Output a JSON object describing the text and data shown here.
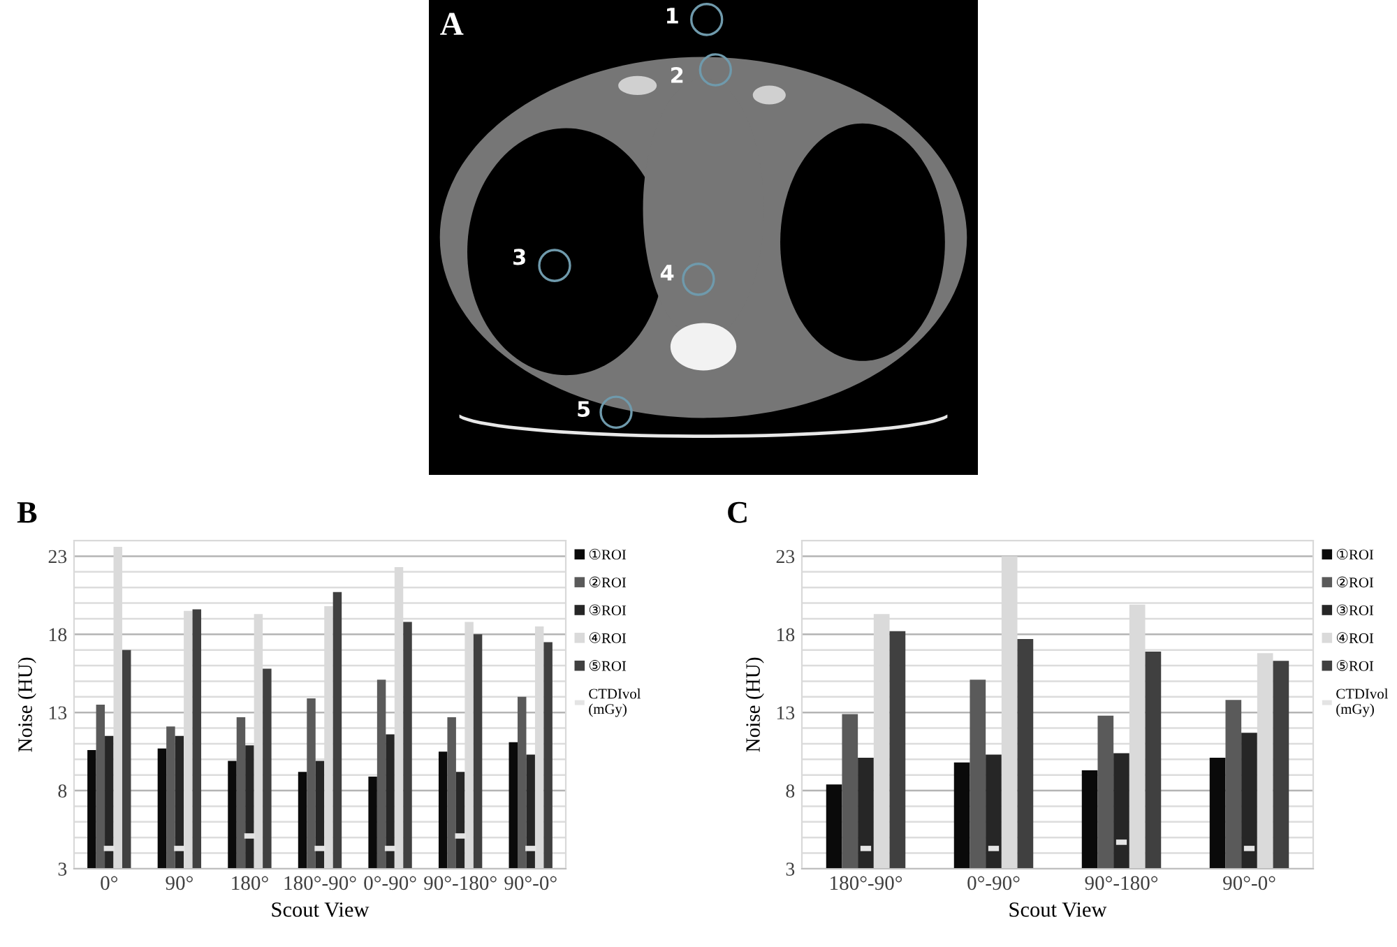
{
  "chart_data": [
    {
      "type": "other",
      "title": "A",
      "annotations": [
        "1",
        "2",
        "3",
        "4",
        "5"
      ]
    },
    {
      "type": "bar",
      "title": "B",
      "categories": [
        "0°",
        "90°",
        "180°",
        "180°-90°",
        "0°-90°",
        "90°-180°",
        "90°-0°"
      ],
      "series": [
        {
          "name": "①ROI",
          "color": "#0a0a0a",
          "values": [
            10.6,
            10.7,
            9.9,
            9.2,
            8.9,
            10.5,
            11.1
          ]
        },
        {
          "name": "②ROI",
          "color": "#5a5a5a",
          "values": [
            13.5,
            12.1,
            12.7,
            13.9,
            15.1,
            12.7,
            14.0
          ]
        },
        {
          "name": "③ROI",
          "color": "#262626",
          "values": [
            11.5,
            11.5,
            10.9,
            9.9,
            11.6,
            9.2,
            10.3
          ]
        },
        {
          "name": "④ROI",
          "color": "#dadada",
          "values": [
            23.6,
            19.5,
            19.3,
            19.8,
            22.3,
            18.8,
            18.5
          ]
        },
        {
          "name": "⑤ROI",
          "color": "#404040",
          "values": [
            17.0,
            19.6,
            15.8,
            20.7,
            18.8,
            18.0,
            17.5
          ]
        },
        {
          "name": "CTDIvol\n(mGy)",
          "type": "scatter",
          "marker": "square",
          "color": "#e4e4e4",
          "values": [
            4.3,
            4.3,
            5.1,
            4.3,
            4.3,
            5.1,
            4.3
          ]
        }
      ],
      "xlabel": "Scout View",
      "ylabel": "Noise (HU)",
      "ylim": [
        3,
        24
      ],
      "yticks": [
        3,
        {
          "value": 4,
          "label": null
        },
        {
          "value": 5,
          "label": null
        },
        {
          "value": 6,
          "label": null
        },
        {
          "value": 7,
          "label": null
        },
        8,
        {
          "value": 9,
          "label": null
        },
        {
          "value": 10,
          "label": null
        },
        {
          "value": 11,
          "label": null
        },
        {
          "value": 12,
          "label": null
        },
        13,
        {
          "value": 14,
          "label": null
        },
        {
          "value": 15,
          "label": null
        },
        {
          "value": 16,
          "label": null
        },
        {
          "value": 17,
          "label": null
        },
        18,
        {
          "value": 19,
          "label": null
        },
        {
          "value": 20,
          "label": null
        },
        {
          "value": 21,
          "label": null
        },
        {
          "value": 22,
          "label": null
        },
        23,
        {
          "value": 24,
          "label": null
        }
      ],
      "grid": "y",
      "legend": "right"
    },
    {
      "type": "bar",
      "title": "C",
      "categories": [
        "180°-90°",
        "0°-90°",
        "90°-180°",
        "90°-0°"
      ],
      "series": [
        {
          "name": "①ROI",
          "color": "#0a0a0a",
          "values": [
            8.4,
            9.8,
            9.3,
            10.1
          ]
        },
        {
          "name": "②ROI",
          "color": "#5a5a5a",
          "values": [
            12.9,
            15.1,
            12.8,
            13.8
          ]
        },
        {
          "name": "③ROI",
          "color": "#262626",
          "values": [
            10.1,
            10.3,
            10.4,
            11.7
          ]
        },
        {
          "name": "④ROI",
          "color": "#dadada",
          "values": [
            19.3,
            23.0,
            19.9,
            16.8
          ]
        },
        {
          "name": "⑤ROI",
          "color": "#404040",
          "values": [
            18.2,
            17.7,
            16.9,
            16.3
          ]
        },
        {
          "name": "CTDIvol\n(mGy)",
          "type": "scatter",
          "marker": "square",
          "color": "#e4e4e4",
          "values": [
            4.3,
            4.3,
            4.7,
            4.3
          ]
        }
      ],
      "xlabel": "Scout View",
      "ylabel": "Noise (HU)",
      "ylim": [
        3,
        24
      ],
      "yticks": [
        3,
        {
          "value": 4,
          "label": null
        },
        {
          "value": 5,
          "label": null
        },
        {
          "value": 6,
          "label": null
        },
        {
          "value": 7,
          "label": null
        },
        8,
        {
          "value": 9,
          "label": null
        },
        {
          "value": 10,
          "label": null
        },
        {
          "value": 11,
          "label": null
        },
        {
          "value": 12,
          "label": null
        },
        13,
        {
          "value": 14,
          "label": null
        },
        {
          "value": 15,
          "label": null
        },
        {
          "value": 16,
          "label": null
        },
        {
          "value": 17,
          "label": null
        },
        18,
        {
          "value": 19,
          "label": null
        },
        {
          "value": 20,
          "label": null
        },
        {
          "value": 21,
          "label": null
        },
        {
          "value": 22,
          "label": null
        },
        23,
        {
          "value": 24,
          "label": null
        }
      ],
      "grid": "y",
      "legend": "right"
    }
  ]
}
